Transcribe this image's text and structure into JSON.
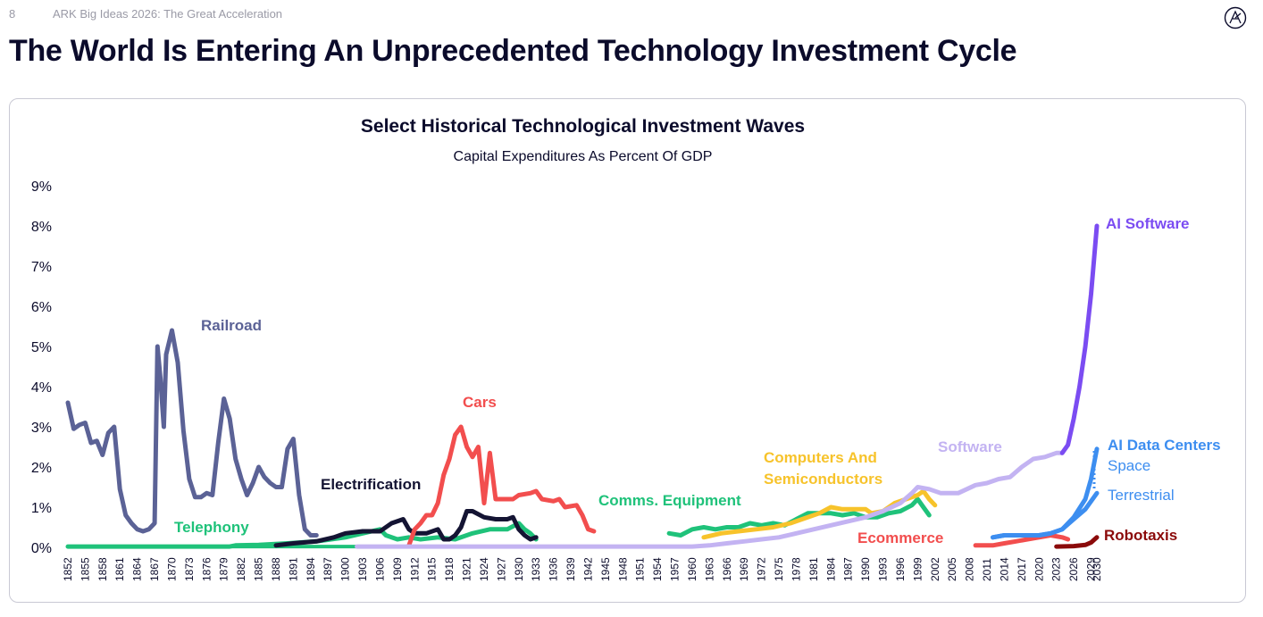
{
  "header": {
    "page_number": "8",
    "deck_title": "ARK Big Ideas 2026: The Great Acceleration"
  },
  "slide_title": "The World Is Entering An Unprecedented Technology Investment Cycle",
  "colors": {
    "railroad": "#5b6296",
    "telephony": "#1fc27a",
    "electrification": "#141433",
    "cars": "#f24e4e",
    "comms": "#1fc27a",
    "computers": "#f7c32b",
    "software": "#c3b3f2",
    "ecommerce": "#f24e4e",
    "ai_software": "#7b4cf2",
    "ai_dc": "#3d8ef0",
    "robotaxis": "#8b0a0a"
  },
  "chart_data": {
    "type": "line",
    "title": "Select Historical Technological Investment Waves",
    "subtitle": "Capital Expenditures As Percent Of GDP",
    "xlabel": "",
    "ylabel": "",
    "ylim": [
      0,
      9
    ],
    "yticks": [
      "0%",
      "1%",
      "2%",
      "3%",
      "4%",
      "5%",
      "6%",
      "7%",
      "8%",
      "9%"
    ],
    "xticks": [
      "1852",
      "1855",
      "1858",
      "1861",
      "1864",
      "1867",
      "1870",
      "1873",
      "1876",
      "1879",
      "1882",
      "1885",
      "1888",
      "1891",
      "1894",
      "1897",
      "1900",
      "1903",
      "1906",
      "1909",
      "1912",
      "1915",
      "1918",
      "1921",
      "1924",
      "1927",
      "1930",
      "1933",
      "1936",
      "1939",
      "1942",
      "1945",
      "1948",
      "1951",
      "1954",
      "1957",
      "1960",
      "1963",
      "1966",
      "1969",
      "1972",
      "1975",
      "1978",
      "1981",
      "1984",
      "1987",
      "1990",
      "1993",
      "1996",
      "1999",
      "2002",
      "2005",
      "2008",
      "2011",
      "2014",
      "2017",
      "2020",
      "2023",
      "2026",
      "2029",
      "2030"
    ],
    "series": [
      {
        "name": "Railroad",
        "color": "#5b6296",
        "label_year": 1874,
        "label_value": 5.5,
        "points": [
          [
            1852,
            3.6
          ],
          [
            1853,
            2.95
          ],
          [
            1854,
            3.05
          ],
          [
            1855,
            3.1
          ],
          [
            1856,
            2.6
          ],
          [
            1857,
            2.65
          ],
          [
            1858,
            2.3
          ],
          [
            1859,
            2.85
          ],
          [
            1860,
            3.0
          ],
          [
            1861,
            1.45
          ],
          [
            1862,
            0.8
          ],
          [
            1863,
            0.6
          ],
          [
            1864,
            0.45
          ],
          [
            1865,
            0.4
          ],
          [
            1866,
            0.45
          ],
          [
            1867,
            0.6
          ],
          [
            1867.5,
            5.0
          ],
          [
            1868,
            4.2
          ],
          [
            1868.6,
            3.0
          ],
          [
            1869,
            4.8
          ],
          [
            1870,
            5.4
          ],
          [
            1871,
            4.6
          ],
          [
            1872,
            2.9
          ],
          [
            1873,
            1.7
          ],
          [
            1874,
            1.25
          ],
          [
            1875,
            1.25
          ],
          [
            1876,
            1.35
          ],
          [
            1877,
            1.3
          ],
          [
            1878,
            2.6
          ],
          [
            1879,
            3.7
          ],
          [
            1880,
            3.2
          ],
          [
            1881,
            2.2
          ],
          [
            1882,
            1.7
          ],
          [
            1883,
            1.3
          ],
          [
            1884,
            1.6
          ],
          [
            1885,
            2.0
          ],
          [
            1886,
            1.75
          ],
          [
            1887,
            1.6
          ],
          [
            1888,
            1.5
          ],
          [
            1889,
            1.5
          ],
          [
            1890,
            2.45
          ],
          [
            1891,
            2.7
          ],
          [
            1892,
            1.3
          ],
          [
            1893,
            0.45
          ],
          [
            1894,
            0.3
          ],
          [
            1895,
            0.3
          ]
        ]
      },
      {
        "name": "Telephony",
        "color": "#1fc27a",
        "label_year": 1876,
        "label_value": 0.5,
        "points": [
          [
            1852,
            0.02
          ],
          [
            1880,
            0.02
          ],
          [
            1881,
            0.05
          ],
          [
            1885,
            0.06
          ],
          [
            1890,
            0.1
          ],
          [
            1895,
            0.15
          ],
          [
            1900,
            0.25
          ],
          [
            1903,
            0.35
          ],
          [
            1906,
            0.45
          ],
          [
            1907,
            0.3
          ],
          [
            1909,
            0.2
          ],
          [
            1911,
            0.25
          ],
          [
            1913,
            0.2
          ],
          [
            1916,
            0.25
          ],
          [
            1919,
            0.2
          ],
          [
            1922,
            0.35
          ],
          [
            1925,
            0.45
          ],
          [
            1928,
            0.45
          ],
          [
            1930,
            0.6
          ],
          [
            1931,
            0.45
          ],
          [
            1932,
            0.35
          ],
          [
            1933,
            0.2
          ]
        ]
      },
      {
        "name": "Electrification",
        "color": "#141433",
        "label_year": 1897,
        "label_value": 1.55,
        "points": [
          [
            1888,
            0.05
          ],
          [
            1891,
            0.1
          ],
          [
            1895,
            0.15
          ],
          [
            1898,
            0.25
          ],
          [
            1900,
            0.35
          ],
          [
            1903,
            0.4
          ],
          [
            1906,
            0.4
          ],
          [
            1908,
            0.6
          ],
          [
            1910,
            0.7
          ],
          [
            1911,
            0.45
          ],
          [
            1912,
            0.35
          ],
          [
            1914,
            0.35
          ],
          [
            1916,
            0.45
          ],
          [
            1917,
            0.2
          ],
          [
            1918,
            0.2
          ],
          [
            1919,
            0.3
          ],
          [
            1920,
            0.5
          ],
          [
            1921,
            0.9
          ],
          [
            1922,
            0.9
          ],
          [
            1924,
            0.75
          ],
          [
            1926,
            0.7
          ],
          [
            1928,
            0.7
          ],
          [
            1929,
            0.75
          ],
          [
            1930,
            0.45
          ],
          [
            1931,
            0.3
          ],
          [
            1932,
            0.2
          ],
          [
            1933,
            0.25
          ]
        ]
      },
      {
        "name": "Cars",
        "color": "#f24e4e",
        "label_year": 1919,
        "label_value": 3.5,
        "points": [
          [
            1911,
            0.05
          ],
          [
            1912,
            0.45
          ],
          [
            1913,
            0.6
          ],
          [
            1914,
            0.8
          ],
          [
            1915,
            0.8
          ],
          [
            1916,
            1.1
          ],
          [
            1917,
            1.8
          ],
          [
            1918,
            2.2
          ],
          [
            1919,
            2.8
          ],
          [
            1920,
            3.0
          ],
          [
            1921,
            2.5
          ],
          [
            1922,
            2.25
          ],
          [
            1923,
            2.5
          ],
          [
            1924,
            1.1
          ],
          [
            1925,
            2.35
          ],
          [
            1926,
            1.2
          ],
          [
            1927,
            1.2
          ],
          [
            1928,
            1.2
          ],
          [
            1929,
            1.2
          ],
          [
            1930,
            1.3
          ],
          [
            1932,
            1.35
          ],
          [
            1933,
            1.4
          ],
          [
            1934,
            1.2
          ],
          [
            1936,
            1.15
          ],
          [
            1937,
            1.2
          ],
          [
            1938,
            1.0
          ],
          [
            1940,
            1.05
          ],
          [
            1941,
            0.8
          ],
          [
            1942,
            0.45
          ],
          [
            1943,
            0.4
          ]
        ]
      },
      {
        "name": "Comms. Equipment",
        "color": "#1fc27a",
        "label_year": 1951,
        "label_value": 1.15,
        "points": [
          [
            1956,
            0.35
          ],
          [
            1958,
            0.3
          ],
          [
            1960,
            0.45
          ],
          [
            1962,
            0.5
          ],
          [
            1964,
            0.45
          ],
          [
            1966,
            0.5
          ],
          [
            1968,
            0.5
          ],
          [
            1970,
            0.6
          ],
          [
            1972,
            0.55
          ],
          [
            1974,
            0.6
          ],
          [
            1976,
            0.55
          ],
          [
            1978,
            0.7
          ],
          [
            1980,
            0.85
          ],
          [
            1982,
            0.85
          ],
          [
            1984,
            0.85
          ],
          [
            1986,
            0.8
          ],
          [
            1988,
            0.85
          ],
          [
            1990,
            0.75
          ],
          [
            1992,
            0.75
          ],
          [
            1994,
            0.85
          ],
          [
            1996,
            0.9
          ],
          [
            1998,
            1.05
          ],
          [
            1999,
            1.2
          ],
          [
            2000,
            1.0
          ],
          [
            2001,
            0.8
          ]
        ]
      },
      {
        "name": "Computers And Semiconductors",
        "color": "#f7c32b",
        "label_year": 1970,
        "label_value": 2.25,
        "points": [
          [
            1962,
            0.25
          ],
          [
            1965,
            0.35
          ],
          [
            1968,
            0.4
          ],
          [
            1971,
            0.45
          ],
          [
            1974,
            0.5
          ],
          [
            1977,
            0.6
          ],
          [
            1980,
            0.75
          ],
          [
            1982,
            0.85
          ],
          [
            1984,
            1.0
          ],
          [
            1986,
            0.95
          ],
          [
            1988,
            0.95
          ],
          [
            1990,
            0.95
          ],
          [
            1991,
            0.85
          ],
          [
            1993,
            0.9
          ],
          [
            1995,
            1.1
          ],
          [
            1997,
            1.2
          ],
          [
            1999,
            1.3
          ],
          [
            2000,
            1.4
          ],
          [
            2001,
            1.2
          ],
          [
            2002,
            1.05
          ]
        ]
      },
      {
        "name": "Software",
        "color": "#c3b3f2",
        "label_year": 2003,
        "label_value": 2.5,
        "points": [
          [
            1902,
            0.02
          ],
          [
            1960,
            0.02
          ],
          [
            1963,
            0.05
          ],
          [
            1966,
            0.1
          ],
          [
            1969,
            0.15
          ],
          [
            1972,
            0.2
          ],
          [
            1975,
            0.25
          ],
          [
            1978,
            0.35
          ],
          [
            1981,
            0.45
          ],
          [
            1984,
            0.55
          ],
          [
            1987,
            0.65
          ],
          [
            1990,
            0.75
          ],
          [
            1993,
            0.9
          ],
          [
            1996,
            1.1
          ],
          [
            1998,
            1.35
          ],
          [
            1999,
            1.5
          ],
          [
            2001,
            1.45
          ],
          [
            2003,
            1.35
          ],
          [
            2006,
            1.35
          ],
          [
            2009,
            1.55
          ],
          [
            2011,
            1.6
          ],
          [
            2013,
            1.7
          ],
          [
            2015,
            1.75
          ],
          [
            2017,
            2.0
          ],
          [
            2019,
            2.2
          ],
          [
            2021,
            2.25
          ],
          [
            2023,
            2.35
          ],
          [
            2024,
            2.35
          ]
        ]
      },
      {
        "name": "Ecommerce",
        "color": "#f24e4e",
        "label_year": 1990,
        "label_value": 0.2,
        "points": [
          [
            2009,
            0.05
          ],
          [
            2012,
            0.05
          ],
          [
            2014,
            0.1
          ],
          [
            2016,
            0.15
          ],
          [
            2018,
            0.2
          ],
          [
            2020,
            0.25
          ],
          [
            2022,
            0.3
          ],
          [
            2024,
            0.25
          ],
          [
            2025,
            0.2
          ]
        ]
      },
      {
        "name": "AI Software",
        "color": "#7b4cf2",
        "label_year": 2031,
        "label_value": 8.1,
        "points": [
          [
            2024,
            2.35
          ],
          [
            2025,
            2.55
          ],
          [
            2026,
            3.2
          ],
          [
            2027,
            4.0
          ],
          [
            2028,
            5.0
          ],
          [
            2029,
            6.3
          ],
          [
            2030,
            8.0
          ]
        ]
      },
      {
        "name": "AI Data Centers — Space",
        "color": "#3d8ef0",
        "label_year": 2031,
        "label_value": 2.5,
        "points": [
          [
            2012,
            0.25
          ],
          [
            2014,
            0.3
          ],
          [
            2016,
            0.3
          ],
          [
            2018,
            0.3
          ],
          [
            2020,
            0.3
          ],
          [
            2022,
            0.35
          ],
          [
            2024,
            0.45
          ],
          [
            2026,
            0.75
          ],
          [
            2028,
            1.2
          ],
          [
            2029,
            1.7
          ],
          [
            2030,
            2.45
          ]
        ]
      },
      {
        "name": "AI Data Centers — Terrestrial",
        "color": "#3d8ef0",
        "label_year": 2031,
        "label_value": 1.35,
        "points": [
          [
            2012,
            0.25
          ],
          [
            2014,
            0.3
          ],
          [
            2016,
            0.3
          ],
          [
            2018,
            0.3
          ],
          [
            2020,
            0.3
          ],
          [
            2022,
            0.35
          ],
          [
            2024,
            0.45
          ],
          [
            2026,
            0.7
          ],
          [
            2028,
            0.95
          ],
          [
            2030,
            1.35
          ]
        ]
      },
      {
        "name": "Robotaxis",
        "color": "#8b0a0a",
        "label_year": 2031,
        "label_value": 0.3,
        "points": [
          [
            2023,
            0.02
          ],
          [
            2026,
            0.03
          ],
          [
            2028,
            0.06
          ],
          [
            2029,
            0.12
          ],
          [
            2030,
            0.25
          ]
        ]
      }
    ],
    "labels": {
      "railroad": "Railroad",
      "telephony": "Telephony",
      "electrification": "Electrification",
      "cars": "Cars",
      "comms": "Comms. Equipment",
      "computers_1": "Computers And",
      "computers_2": "Semiconductors",
      "software": "Software",
      "ecommerce": "Ecommerce",
      "ai_software": "AI Software",
      "ai_dc": "AI Data Centers",
      "ai_dc_space": "Space",
      "ai_dc_terrestrial": "Terrestrial",
      "robotaxis": "Robotaxis"
    }
  }
}
